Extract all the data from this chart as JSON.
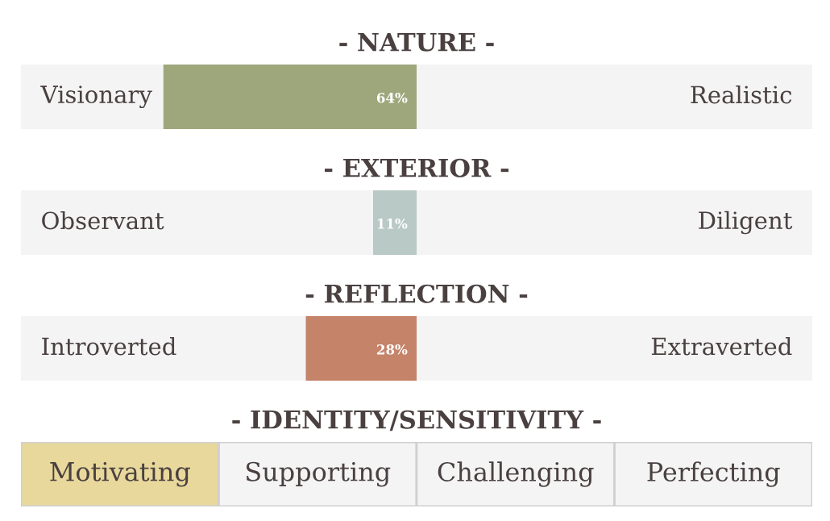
{
  "chart_data": [
    {
      "type": "bar",
      "orientation": "horizontal",
      "title": "- NATURE -",
      "categories": [
        null
      ],
      "values": [
        64
      ],
      "value_labels": [
        "64%"
      ],
      "color": "#9ea77c",
      "xlim": [
        100,
        -100
      ],
      "annotations": [
        "Visionary",
        "Realistic"
      ]
    },
    {
      "type": "bar",
      "orientation": "horizontal",
      "title": "- EXTERIOR -",
      "categories": [
        null
      ],
      "values": [
        11
      ],
      "value_labels": [
        "11%"
      ],
      "color": "#b9c9c5",
      "xlim": [
        100,
        -100
      ],
      "annotations": [
        "Observant",
        "Diligent"
      ]
    },
    {
      "type": "bar",
      "orientation": "horizontal",
      "title": "- REFLECTION -",
      "categories": [
        null
      ],
      "values": [
        28
      ],
      "value_labels": [
        "28%"
      ],
      "color": "#c5836a",
      "xlim": [
        100,
        -100
      ],
      "annotations": [
        "Introverted",
        "Extraverted"
      ]
    },
    {
      "type": "other",
      "title": "- IDENTITY/SENSITIVITY -",
      "annotations": [
        "Motivating",
        "Supporting",
        "Challenging",
        "Perfecting"
      ],
      "colors": [
        "#e8d89c",
        "#f4f4f4",
        "#f4f4f4",
        "#f4f4f4"
      ]
    }
  ]
}
